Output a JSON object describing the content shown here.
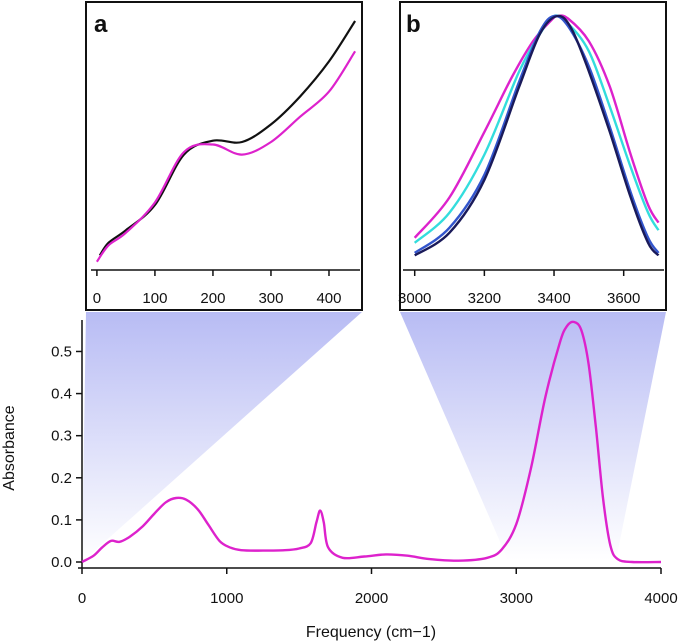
{
  "colors": {
    "magenta": "#dd22cc",
    "black": "#111111",
    "cyan": "#33dddd",
    "blue": "#3355cc",
    "navy": "#1a1a5a",
    "shade": "#b8bcf4"
  },
  "chart_data": [
    {
      "id": "main",
      "type": "line",
      "xlabel": "Frequency (cm−1)",
      "ylabel": "Absorbance",
      "xlim": [
        0,
        4000
      ],
      "ylim": [
        0,
        0.57
      ],
      "xticks": [
        0,
        1000,
        2000,
        3000,
        4000
      ],
      "xtick_labels": [
        "0",
        "1000",
        "2000",
        "3000",
        "4000"
      ],
      "yticks": [
        0.0,
        0.1,
        0.2,
        0.3,
        0.4,
        0.5
      ],
      "ytick_labels": [
        "0.0",
        "0.1",
        "0.2",
        "0.3",
        "0.4",
        "0.5"
      ],
      "series": [
        {
          "name": "spectrum",
          "color": "magenta",
          "points": [
            [
              0,
              0.0
            ],
            [
              80,
              0.015
            ],
            [
              140,
              0.035
            ],
            [
              200,
              0.05
            ],
            [
              260,
              0.048
            ],
            [
              330,
              0.06
            ],
            [
              420,
              0.085
            ],
            [
              500,
              0.115
            ],
            [
              580,
              0.142
            ],
            [
              650,
              0.152
            ],
            [
              720,
              0.148
            ],
            [
              800,
              0.125
            ],
            [
              870,
              0.09
            ],
            [
              950,
              0.05
            ],
            [
              1020,
              0.035
            ],
            [
              1100,
              0.028
            ],
            [
              1250,
              0.027
            ],
            [
              1400,
              0.028
            ],
            [
              1500,
              0.032
            ],
            [
              1580,
              0.045
            ],
            [
              1620,
              0.095
            ],
            [
              1645,
              0.122
            ],
            [
              1670,
              0.095
            ],
            [
              1700,
              0.035
            ],
            [
              1800,
              0.01
            ],
            [
              1950,
              0.013
            ],
            [
              2100,
              0.018
            ],
            [
              2250,
              0.015
            ],
            [
              2400,
              0.007
            ],
            [
              2600,
              0.003
            ],
            [
              2800,
              0.01
            ],
            [
              2900,
              0.03
            ],
            [
              3000,
              0.09
            ],
            [
              3100,
              0.22
            ],
            [
              3200,
              0.39
            ],
            [
              3300,
              0.52
            ],
            [
              3350,
              0.56
            ],
            [
              3400,
              0.57
            ],
            [
              3450,
              0.55
            ],
            [
              3500,
              0.47
            ],
            [
              3550,
              0.32
            ],
            [
              3600,
              0.15
            ],
            [
              3650,
              0.04
            ],
            [
              3700,
              0.007
            ],
            [
              3800,
              0.0
            ],
            [
              4000,
              0.0
            ]
          ]
        }
      ]
    },
    {
      "id": "a",
      "type": "line",
      "panel_label": "a",
      "xlim": [
        -5,
        450
      ],
      "xticks": [
        0,
        100,
        200,
        300,
        400
      ],
      "xtick_labels": [
        "0",
        "100",
        "200",
        "300",
        "400"
      ],
      "series": [
        {
          "name": "black-curve",
          "color": "black",
          "points": [
            [
              5,
              0.05
            ],
            [
              20,
              0.1
            ],
            [
              50,
              0.15
            ],
            [
              100,
              0.25
            ],
            [
              150,
              0.45
            ],
            [
              200,
              0.505
            ],
            [
              250,
              0.5
            ],
            [
              300,
              0.57
            ],
            [
              350,
              0.68
            ],
            [
              400,
              0.82
            ],
            [
              445,
              0.98
            ]
          ]
        },
        {
          "name": "magenta-curve",
          "color": "magenta",
          "points": [
            [
              0,
              0.025
            ],
            [
              20,
              0.09
            ],
            [
              50,
              0.14
            ],
            [
              100,
              0.26
            ],
            [
              150,
              0.46
            ],
            [
              200,
              0.49
            ],
            [
              250,
              0.45
            ],
            [
              300,
              0.5
            ],
            [
              350,
              0.6
            ],
            [
              400,
              0.7
            ],
            [
              445,
              0.86
            ]
          ]
        }
      ]
    },
    {
      "id": "b",
      "type": "line",
      "panel_label": "b",
      "xlim": [
        2975,
        3710
      ],
      "xticks": [
        3000,
        3200,
        3400,
        3600
      ],
      "xtick_labels": [
        "3000",
        "3200",
        "3400",
        "3600"
      ],
      "series": [
        {
          "name": "magenta-curve",
          "color": "magenta",
          "points": [
            [
              3000,
              0.12
            ],
            [
              3100,
              0.28
            ],
            [
              3200,
              0.54
            ],
            [
              3280,
              0.76
            ],
            [
              3340,
              0.9
            ],
            [
              3390,
              0.98
            ],
            [
              3410,
              1.0
            ],
            [
              3440,
              0.99
            ],
            [
              3500,
              0.9
            ],
            [
              3560,
              0.72
            ],
            [
              3620,
              0.45
            ],
            [
              3670,
              0.25
            ],
            [
              3700,
              0.18
            ]
          ]
        },
        {
          "name": "cyan-curve",
          "color": "cyan",
          "points": [
            [
              3000,
              0.1
            ],
            [
              3100,
              0.22
            ],
            [
              3200,
              0.45
            ],
            [
              3300,
              0.78
            ],
            [
              3360,
              0.93
            ],
            [
              3400,
              1.0
            ],
            [
              3440,
              0.97
            ],
            [
              3500,
              0.86
            ],
            [
              3560,
              0.64
            ],
            [
              3620,
              0.4
            ],
            [
              3670,
              0.22
            ],
            [
              3700,
              0.15
            ]
          ]
        },
        {
          "name": "blue-curve",
          "color": "blue",
          "points": [
            [
              3000,
              0.06
            ],
            [
              3100,
              0.16
            ],
            [
              3200,
              0.37
            ],
            [
              3300,
              0.74
            ],
            [
              3360,
              0.94
            ],
            [
              3400,
              1.0
            ],
            [
              3440,
              0.96
            ],
            [
              3500,
              0.8
            ],
            [
              3560,
              0.56
            ],
            [
              3620,
              0.3
            ],
            [
              3670,
              0.12
            ],
            [
              3700,
              0.06
            ]
          ]
        },
        {
          "name": "navy-curve",
          "color": "navy",
          "points": [
            [
              3000,
              0.05
            ],
            [
              3100,
              0.14
            ],
            [
              3200,
              0.35
            ],
            [
              3300,
              0.72
            ],
            [
              3360,
              0.93
            ],
            [
              3410,
              1.0
            ],
            [
              3450,
              0.95
            ],
            [
              3500,
              0.78
            ],
            [
              3560,
              0.54
            ],
            [
              3620,
              0.28
            ],
            [
              3670,
              0.1
            ],
            [
              3700,
              0.05
            ]
          ]
        }
      ]
    }
  ]
}
